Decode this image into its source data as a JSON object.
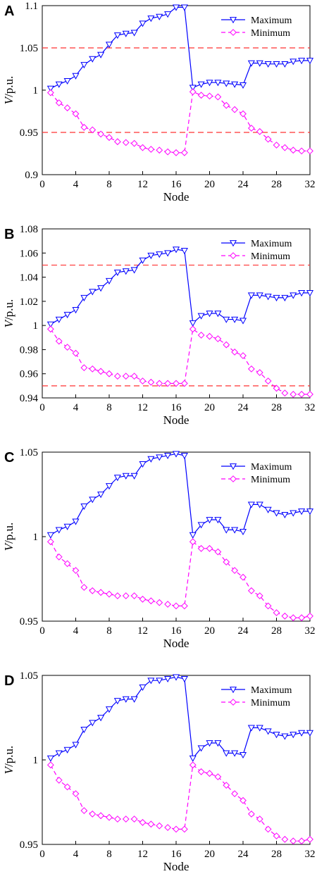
{
  "chart_data": [
    {
      "type": "line",
      "panel_label": "A",
      "xlabel": "Node",
      "ylabel_main": "V",
      "ylabel_unit": "/p.u.",
      "xlim": [
        0,
        32
      ],
      "ylim": [
        0.9,
        1.1
      ],
      "xticks": [
        "0",
        "4",
        "8",
        "12",
        "16",
        "20",
        "24",
        "28",
        "32"
      ],
      "yticks": [
        "0.9",
        "0.95",
        "1",
        "1.05",
        "1.1"
      ],
      "x": [
        1,
        2,
        3,
        4,
        5,
        6,
        7,
        8,
        9,
        10,
        11,
        12,
        13,
        14,
        15,
        16,
        17,
        18,
        19,
        20,
        21,
        22,
        23,
        24,
        25,
        26,
        27,
        28,
        29,
        30,
        31,
        32
      ],
      "reference_lines": [
        1.05,
        0.95
      ],
      "legend_position": "top-right",
      "series": [
        {
          "name": "Maximum",
          "values": [
            1.002,
            1.007,
            1.011,
            1.017,
            1.03,
            1.037,
            1.042,
            1.054,
            1.065,
            1.067,
            1.068,
            1.079,
            1.085,
            1.087,
            1.09,
            1.098,
            1.098,
            1.003,
            1.007,
            1.009,
            1.009,
            1.008,
            1.007,
            1.006,
            1.032,
            1.032,
            1.031,
            1.031,
            1.031,
            1.034,
            1.035,
            1.035
          ]
        },
        {
          "name": "Minimum",
          "values": [
            0.997,
            0.985,
            0.979,
            0.972,
            0.956,
            0.953,
            0.948,
            0.944,
            0.939,
            0.938,
            0.937,
            0.932,
            0.93,
            0.929,
            0.927,
            0.926,
            0.926,
            0.998,
            0.994,
            0.993,
            0.992,
            0.982,
            0.977,
            0.972,
            0.955,
            0.951,
            0.942,
            0.935,
            0.932,
            0.929,
            0.928,
            0.928
          ]
        }
      ]
    },
    {
      "type": "line",
      "panel_label": "B",
      "xlabel": "Node",
      "ylabel_main": "V",
      "ylabel_unit": "/p.u.",
      "xlim": [
        0,
        32
      ],
      "ylim": [
        0.94,
        1.08
      ],
      "xticks": [
        "0",
        "4",
        "8",
        "12",
        "16",
        "20",
        "24",
        "28",
        "32"
      ],
      "yticks": [
        "0.94",
        "0.96",
        "0.98",
        "1",
        "1.02",
        "1.04",
        "1.06",
        "1.08"
      ],
      "x": [
        1,
        2,
        3,
        4,
        5,
        6,
        7,
        8,
        9,
        10,
        11,
        12,
        13,
        14,
        15,
        16,
        17,
        18,
        19,
        20,
        21,
        22,
        23,
        24,
        25,
        26,
        27,
        28,
        29,
        30,
        31,
        32
      ],
      "reference_lines": [
        1.05,
        0.95
      ],
      "legend_position": "top-right",
      "series": [
        {
          "name": "Maximum",
          "values": [
            1.001,
            1.005,
            1.009,
            1.013,
            1.023,
            1.028,
            1.031,
            1.037,
            1.044,
            1.045,
            1.046,
            1.054,
            1.058,
            1.059,
            1.06,
            1.063,
            1.062,
            1.002,
            1.008,
            1.01,
            1.01,
            1.005,
            1.005,
            1.004,
            1.025,
            1.025,
            1.024,
            1.023,
            1.023,
            1.025,
            1.027,
            1.027
          ]
        },
        {
          "name": "Minimum",
          "values": [
            0.997,
            0.987,
            0.982,
            0.977,
            0.965,
            0.964,
            0.962,
            0.96,
            0.958,
            0.958,
            0.958,
            0.954,
            0.953,
            0.952,
            0.952,
            0.952,
            0.952,
            0.997,
            0.992,
            0.991,
            0.989,
            0.984,
            0.978,
            0.975,
            0.964,
            0.961,
            0.954,
            0.948,
            0.944,
            0.943,
            0.943,
            0.943
          ]
        }
      ]
    },
    {
      "type": "line",
      "panel_label": "C",
      "xlabel": "Node",
      "ylabel_main": "V",
      "ylabel_unit": "/p.u.",
      "xlim": [
        0,
        32
      ],
      "ylim": [
        0.95,
        1.05
      ],
      "xticks": [
        "0",
        "4",
        "8",
        "12",
        "16",
        "20",
        "24",
        "28",
        "32"
      ],
      "yticks": [
        "0.95",
        "1",
        "1.05"
      ],
      "x": [
        1,
        2,
        3,
        4,
        5,
        6,
        7,
        8,
        9,
        10,
        11,
        12,
        13,
        14,
        15,
        16,
        17,
        18,
        19,
        20,
        21,
        22,
        23,
        24,
        25,
        26,
        27,
        28,
        29,
        30,
        31,
        32
      ],
      "reference_lines": [],
      "legend_position": "top-right",
      "series": [
        {
          "name": "Maximum",
          "values": [
            1.001,
            1.004,
            1.006,
            1.009,
            1.018,
            1.022,
            1.025,
            1.03,
            1.035,
            1.036,
            1.036,
            1.043,
            1.046,
            1.047,
            1.048,
            1.049,
            1.048,
            1.001,
            1.007,
            1.01,
            1.01,
            1.004,
            1.004,
            1.003,
            1.019,
            1.019,
            1.016,
            1.014,
            1.013,
            1.014,
            1.015,
            1.015
          ]
        },
        {
          "name": "Minimum",
          "values": [
            0.997,
            0.988,
            0.984,
            0.98,
            0.97,
            0.968,
            0.967,
            0.966,
            0.965,
            0.965,
            0.965,
            0.963,
            0.962,
            0.961,
            0.96,
            0.959,
            0.959,
            0.997,
            0.993,
            0.993,
            0.991,
            0.985,
            0.98,
            0.976,
            0.968,
            0.965,
            0.959,
            0.955,
            0.953,
            0.952,
            0.952,
            0.953
          ]
        }
      ]
    },
    {
      "type": "line",
      "panel_label": "D",
      "xlabel": "Node",
      "ylabel_main": "V",
      "ylabel_unit": "/p.u.",
      "xlim": [
        0,
        32
      ],
      "ylim": [
        0.95,
        1.05
      ],
      "xticks": [
        "0",
        "4",
        "8",
        "12",
        "16",
        "20",
        "24",
        "28",
        "32"
      ],
      "yticks": [
        "0.95",
        "1",
        "1.05"
      ],
      "x": [
        1,
        2,
        3,
        4,
        5,
        6,
        7,
        8,
        9,
        10,
        11,
        12,
        13,
        14,
        15,
        16,
        17,
        18,
        19,
        20,
        21,
        22,
        23,
        24,
        25,
        26,
        27,
        28,
        29,
        30,
        31,
        32
      ],
      "reference_lines": [],
      "legend_position": "top-right",
      "series": [
        {
          "name": "Maximum",
          "values": [
            1.001,
            1.004,
            1.006,
            1.009,
            1.018,
            1.022,
            1.025,
            1.03,
            1.035,
            1.036,
            1.036,
            1.043,
            1.047,
            1.047,
            1.048,
            1.049,
            1.048,
            1.001,
            1.007,
            1.01,
            1.01,
            1.004,
            1.004,
            1.003,
            1.019,
            1.019,
            1.017,
            1.015,
            1.014,
            1.015,
            1.016,
            1.016
          ]
        },
        {
          "name": "Minimum",
          "values": [
            0.997,
            0.988,
            0.984,
            0.98,
            0.97,
            0.968,
            0.967,
            0.966,
            0.965,
            0.965,
            0.965,
            0.963,
            0.962,
            0.961,
            0.96,
            0.959,
            0.959,
            0.997,
            0.993,
            0.992,
            0.99,
            0.985,
            0.98,
            0.976,
            0.968,
            0.965,
            0.959,
            0.955,
            0.953,
            0.952,
            0.952,
            0.953
          ]
        }
      ]
    }
  ],
  "colors": {
    "maximum": "#0000ff",
    "minimum": "#ff00ff",
    "reference": "#ff3333",
    "axis": "#000000"
  },
  "markers": {
    "maximum": "triangle-down",
    "minimum": "diamond"
  }
}
